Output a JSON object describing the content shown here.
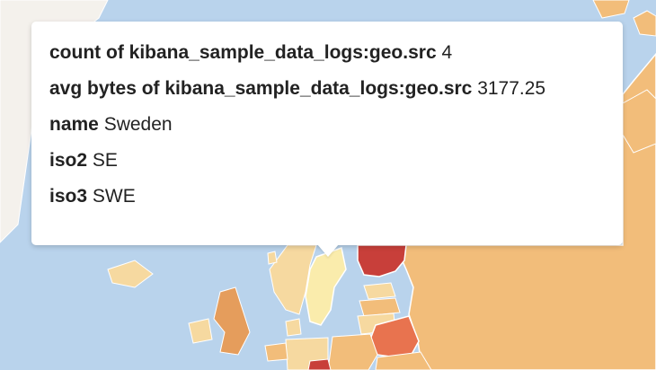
{
  "tooltip": {
    "rows": [
      {
        "key": "count of kibana_sample_data_logs:geo.src",
        "value": "4"
      },
      {
        "key": "avg bytes of kibana_sample_data_logs:geo.src",
        "value": "3177.25"
      },
      {
        "key": "name",
        "value": "Sweden"
      },
      {
        "key": "iso2",
        "value": "SE"
      },
      {
        "key": "iso3",
        "value": "SWE"
      }
    ]
  },
  "colors": {
    "water": "#b9d3ec",
    "greenland": "#f4f1ec",
    "russia": "#f2bd7a",
    "sweden": "#faecac",
    "norway": "#f6d9a0",
    "finland": "#c83f3a",
    "belarus": "#e8734f",
    "uk": "#e59d5c",
    "border": "#ffffff"
  }
}
